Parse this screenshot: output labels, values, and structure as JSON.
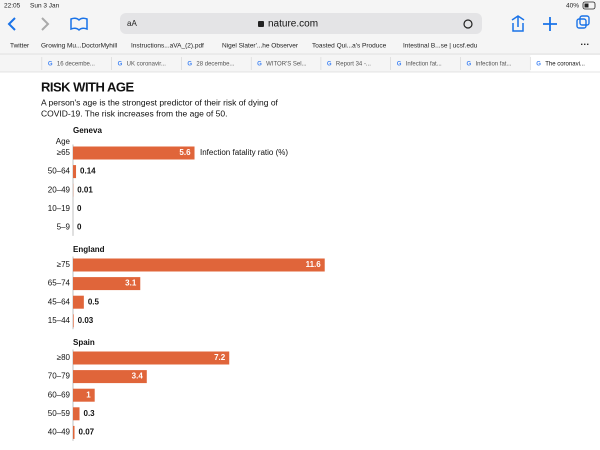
{
  "status_bar": {
    "time": "22:05",
    "date": "Sun 3 Jan",
    "battery": "40%"
  },
  "browser": {
    "reader": "aA",
    "address": "nature.com",
    "bookmarks": [
      "Twitter",
      "Growing Mu...DoctorMyhill",
      "Instructions...aVA_(2).pdf",
      "Nigel Slater'...he Observer",
      "Toasted Qui...a's Produce",
      "Intestinal B...se | ucsf.edu"
    ],
    "tabs": [
      "16 decembe...",
      "UK coronavir...",
      "28 decembe...",
      "WITOR'S Sel...",
      "Report 34 -...",
      "Infection fat...",
      "Infection fat...",
      "The coronavi..."
    ]
  },
  "article": {
    "title": "RISK WITH AGE",
    "subtitle": [
      "A person's age is the strongest predictor of their risk of dying of",
      "COVID-19. The risk increases from the age of 50."
    ],
    "age_label": "Age",
    "x_label": "Infection fatality ratio (%)",
    "panels": [
      {
        "name": "Geneva",
        "categories": [
          "≥65",
          "50–64",
          "20–49",
          "10–19",
          "5–9"
        ],
        "values": [
          5.6,
          0.14,
          0.01,
          0,
          0
        ]
      },
      {
        "name": "England",
        "categories": [
          "≥75",
          "65–74",
          "45–64",
          "15–44"
        ],
        "values": [
          11.6,
          3.1,
          0.5,
          0.03
        ]
      },
      {
        "name": "Spain",
        "categories": [
          "≥80",
          "70–79",
          "60–69",
          "50–59",
          "40–49"
        ],
        "values": [
          7.2,
          3.4,
          1,
          0.3,
          0.07
        ]
      }
    ]
  }
}
